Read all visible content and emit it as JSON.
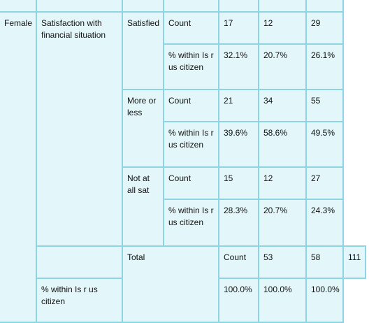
{
  "group": "Female",
  "variable": "Satisfaction with financial situation",
  "measures": {
    "count": "Count",
    "pct": "% within Is r us citizen"
  },
  "rows": [
    {
      "label": "Satisfied",
      "count": [
        "17",
        "12",
        "29"
      ],
      "pct": [
        "32.1%",
        "20.7%",
        "26.1%"
      ]
    },
    {
      "label": "More or less",
      "count": [
        "21",
        "34",
        "55"
      ],
      "pct": [
        "39.6%",
        "58.6%",
        "49.5%"
      ]
    },
    {
      "label": "Not at all sat",
      "count": [
        "15",
        "12",
        "27"
      ],
      "pct": [
        "28.3%",
        "20.7%",
        "24.3%"
      ]
    }
  ],
  "total": {
    "label": "Total",
    "count_label": "Count",
    "count": [
      "53",
      "58",
      "111"
    ],
    "pct_label": "% within Is r us citizen",
    "pct": [
      "100.0%",
      "100.0%",
      "100.0%"
    ]
  }
}
